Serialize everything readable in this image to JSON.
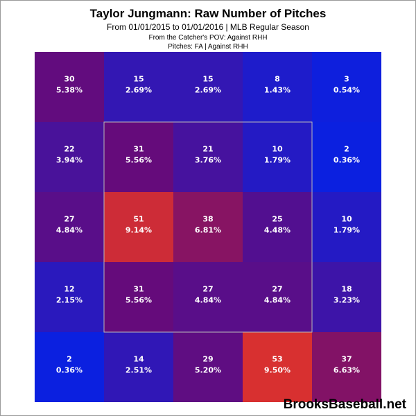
{
  "title": "Taylor Jungmann: Raw Number of Pitches",
  "subtitle": "From 01/01/2015 to 01/01/2016 | MLB Regular Season",
  "note_line1": "From the Catcher's POV:  Against RHH",
  "note_line2": "Pitches:  FA  |  Against RHH",
  "watermark": "BrooksBaseball.net",
  "colors": {
    "low": "#0b20e0",
    "mid": "#6a0a75",
    "high": "#d83030",
    "strike_zone_border": "#bbbbbb"
  },
  "chart_data": {
    "type": "heatmap",
    "title": "Taylor Jungmann: Raw Number of Pitches",
    "rows": 5,
    "cols": 5,
    "counts": [
      [
        30,
        15,
        15,
        8,
        3
      ],
      [
        22,
        31,
        21,
        10,
        2
      ],
      [
        27,
        51,
        38,
        25,
        10
      ],
      [
        12,
        31,
        27,
        27,
        18
      ],
      [
        2,
        14,
        29,
        53,
        37
      ]
    ],
    "percents": [
      [
        "5.38%",
        "2.69%",
        "2.69%",
        "1.43%",
        "0.54%"
      ],
      [
        "3.94%",
        "5.56%",
        "3.76%",
        "1.79%",
        "0.36%"
      ],
      [
        "4.84%",
        "9.14%",
        "6.81%",
        "4.48%",
        "1.79%"
      ],
      [
        "2.15%",
        "5.56%",
        "4.84%",
        "4.84%",
        "3.23%"
      ],
      [
        "0.36%",
        "2.51%",
        "5.20%",
        "9.50%",
        "6.63%"
      ]
    ],
    "strike_zone_cells": {
      "row_start": 1,
      "row_end": 3,
      "col_start": 1,
      "col_end": 3
    }
  }
}
